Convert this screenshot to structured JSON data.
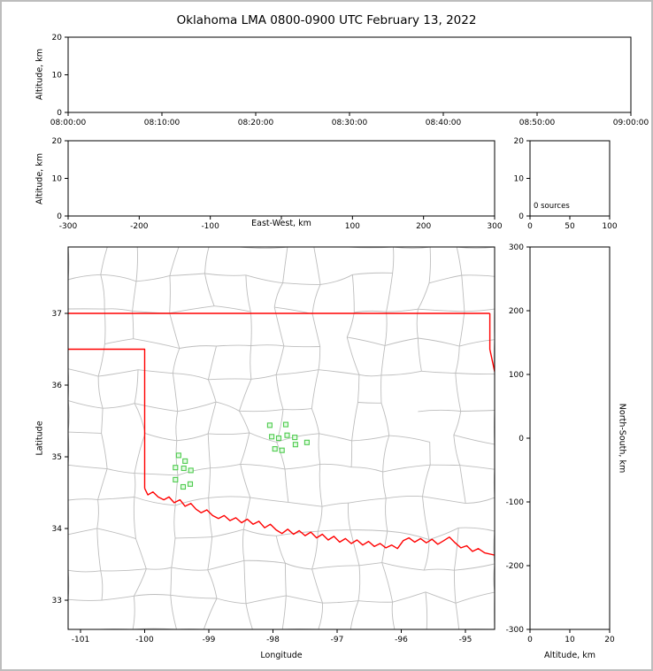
{
  "title": "Oklahoma LMA 0800-0900 UTC February 13, 2022",
  "labels": {
    "altitude_km": "Altitude, km",
    "east_west_km": "East-West, km",
    "north_south_km": "North-South, km",
    "latitude": "Latitude",
    "longitude": "Longitude",
    "sources_annotation": "0 sources"
  },
  "colors": {
    "axis": "#000000",
    "county_lines": "#bdbdbd",
    "state_border": "#ff0000",
    "station_stroke": "#4ecb4e",
    "station_fill": "#e4fbe4",
    "frame_border": "#bdbdbd",
    "background": "#ffffff"
  },
  "chart_data": [
    {
      "id": "time_height_panel",
      "type": "scatter",
      "xlabel": "",
      "ylabel": "Altitude, km",
      "xtick_labels": [
        "08:00:00",
        "08:10:00",
        "08:20:00",
        "08:30:00",
        "08:40:00",
        "08:50:00",
        "09:00:00"
      ],
      "ylim": [
        0,
        20
      ],
      "yticks": [
        0,
        10,
        20
      ],
      "points": []
    },
    {
      "id": "east_west_height_panel",
      "type": "scatter",
      "xlabel": "East-West, km",
      "ylabel": "Altitude, km",
      "xlim": [
        -300,
        300
      ],
      "xticks": [
        -300,
        -200,
        -100,
        0,
        100,
        200,
        300
      ],
      "xtick_labels": [
        "-300",
        "-200",
        "-100",
        "",
        "100",
        "200",
        "300"
      ],
      "ylim": [
        0,
        20
      ],
      "yticks": [
        0,
        10,
        20
      ],
      "points": []
    },
    {
      "id": "altitude_histogram_panel",
      "type": "line",
      "annotation": "0 sources",
      "xlim": [
        0,
        100
      ],
      "xticks": [
        0,
        50,
        100
      ],
      "ylim": [
        0,
        20
      ],
      "yticks": [
        0,
        10,
        20
      ],
      "points": []
    },
    {
      "id": "plan_view_map_panel",
      "type": "scatter",
      "xlabel": "Longitude",
      "ylabel": "Latitude",
      "xlim": [
        -101.193,
        -94.545
      ],
      "xticks": [
        -101,
        -100,
        -99,
        -98,
        -97,
        -96,
        -95
      ],
      "ylim": [
        32.593,
        37.926
      ],
      "yticks": [
        33,
        34,
        35,
        36,
        37
      ],
      "marker": "square",
      "lma_stations_lon_lat": [
        [
          -98.05,
          35.44
        ],
        [
          -97.8,
          35.45
        ],
        [
          -98.02,
          35.28
        ],
        [
          -97.91,
          35.26
        ],
        [
          -97.78,
          35.3
        ],
        [
          -97.66,
          35.27
        ],
        [
          -97.97,
          35.11
        ],
        [
          -97.86,
          35.09
        ],
        [
          -97.65,
          35.17
        ],
        [
          -97.47,
          35.2
        ],
        [
          -99.47,
          35.02
        ],
        [
          -99.37,
          34.94
        ],
        [
          -99.52,
          34.85
        ],
        [
          -99.39,
          34.84
        ],
        [
          -99.28,
          34.81
        ],
        [
          -99.52,
          34.68
        ],
        [
          -99.4,
          34.58
        ],
        [
          -99.29,
          34.62
        ]
      ],
      "oklahoma_border_segments": {
        "north_37": [
          [
            -101.3,
            37.0
          ],
          [
            -94.62,
            37.0
          ]
        ],
        "northeast_corner": [
          [
            -94.62,
            37.0
          ],
          [
            -94.62,
            36.5
          ],
          [
            -94.5,
            36.0
          ]
        ],
        "panhandle_and_west_100": [
          [
            -101.3,
            36.5
          ],
          [
            -100.0,
            36.5
          ],
          [
            -100.0,
            34.56
          ]
        ],
        "red_river_south": [
          [
            -100.0,
            34.56
          ],
          [
            -99.95,
            34.47
          ],
          [
            -99.87,
            34.51
          ],
          [
            -99.79,
            34.44
          ],
          [
            -99.7,
            34.4
          ],
          [
            -99.62,
            34.44
          ],
          [
            -99.54,
            34.36
          ],
          [
            -99.45,
            34.4
          ],
          [
            -99.37,
            34.31
          ],
          [
            -99.28,
            34.35
          ],
          [
            -99.2,
            34.27
          ],
          [
            -99.12,
            34.22
          ],
          [
            -99.03,
            34.26
          ],
          [
            -98.94,
            34.18
          ],
          [
            -98.85,
            34.14
          ],
          [
            -98.76,
            34.18
          ],
          [
            -98.67,
            34.11
          ],
          [
            -98.58,
            34.15
          ],
          [
            -98.49,
            34.08
          ],
          [
            -98.4,
            34.13
          ],
          [
            -98.31,
            34.06
          ],
          [
            -98.22,
            34.1
          ],
          [
            -98.13,
            34.01
          ],
          [
            -98.04,
            34.06
          ],
          [
            -97.95,
            33.98
          ],
          [
            -97.86,
            33.93
          ],
          [
            -97.77,
            33.99
          ],
          [
            -97.68,
            33.92
          ],
          [
            -97.59,
            33.97
          ],
          [
            -97.5,
            33.9
          ],
          [
            -97.41,
            33.95
          ],
          [
            -97.32,
            33.87
          ],
          [
            -97.23,
            33.92
          ],
          [
            -97.14,
            33.84
          ],
          [
            -97.05,
            33.89
          ],
          [
            -96.96,
            33.81
          ],
          [
            -96.87,
            33.86
          ],
          [
            -96.78,
            33.79
          ],
          [
            -96.69,
            33.84
          ],
          [
            -96.6,
            33.77
          ],
          [
            -96.51,
            33.82
          ],
          [
            -96.42,
            33.75
          ],
          [
            -96.33,
            33.79
          ],
          [
            -96.24,
            33.73
          ],
          [
            -96.15,
            33.77
          ],
          [
            -96.06,
            33.72
          ],
          [
            -95.97,
            33.83
          ],
          [
            -95.88,
            33.87
          ],
          [
            -95.79,
            33.81
          ],
          [
            -95.7,
            33.86
          ],
          [
            -95.61,
            33.8
          ],
          [
            -95.52,
            33.85
          ],
          [
            -95.43,
            33.78
          ],
          [
            -95.34,
            33.83
          ],
          [
            -95.25,
            33.88
          ],
          [
            -95.16,
            33.8
          ],
          [
            -95.07,
            33.73
          ],
          [
            -94.98,
            33.76
          ],
          [
            -94.89,
            33.68
          ],
          [
            -94.8,
            33.72
          ],
          [
            -94.7,
            33.66
          ],
          [
            -94.55,
            33.63
          ]
        ]
      }
    },
    {
      "id": "north_south_height_panel",
      "type": "scatter",
      "xlabel": "Altitude, km",
      "ylabel": "North-South, km",
      "xlim": [
        0,
        20
      ],
      "xticks": [
        0,
        10,
        20
      ],
      "ylim": [
        -300,
        300
      ],
      "yticks": [
        300,
        200,
        100,
        0,
        -100,
        -200,
        -300
      ],
      "points": []
    }
  ]
}
